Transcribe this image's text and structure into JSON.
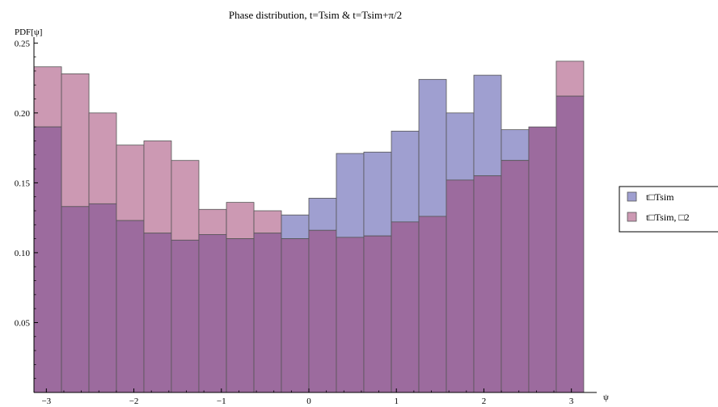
{
  "chart_data": {
    "type": "bar",
    "title": "Phase distribution, t=Tsim &  t=Tsim+π/2",
    "xlabel": "ψ",
    "ylabel": "PDF[ψ]",
    "xlim": [
      -3.14159,
      3.14159
    ],
    "ylim": [
      0,
      0.26
    ],
    "x_ticks": [
      -3,
      -2,
      -1,
      0,
      1,
      2,
      3
    ],
    "y_ticks": [
      0.05,
      0.1,
      0.15,
      0.2,
      0.25
    ],
    "y_tick_labels": [
      "0.05",
      "0.10",
      "0.15",
      "0.20",
      "0.25"
    ],
    "bin_width": 0.314159,
    "bin_centers": [
      -2.984,
      -2.67,
      -2.356,
      -2.042,
      -1.728,
      -1.414,
      -1.1,
      -0.785,
      -0.471,
      -0.157,
      0.157,
      0.471,
      0.785,
      1.1,
      1.414,
      1.728,
      2.042,
      2.356,
      2.67,
      2.984
    ],
    "series": [
      {
        "name": "t□Tsim",
        "color": "#9f9fd0",
        "values": [
          0.19,
          0.133,
          0.135,
          0.123,
          0.114,
          0.109,
          0.113,
          0.11,
          0.114,
          0.127,
          0.139,
          0.171,
          0.172,
          0.187,
          0.224,
          0.2,
          0.227,
          0.188,
          0.19,
          0.212
        ]
      },
      {
        "name": "t□Tsim, □2",
        "color": "#cc99b3",
        "values": [
          0.233,
          0.228,
          0.2,
          0.177,
          0.18,
          0.166,
          0.131,
          0.136,
          0.13,
          0.11,
          0.116,
          0.111,
          0.112,
          0.122,
          0.126,
          0.152,
          0.155,
          0.166,
          0.19,
          0.237
        ]
      }
    ],
    "overlap_color": "#9c6b9e",
    "legend": "right"
  }
}
